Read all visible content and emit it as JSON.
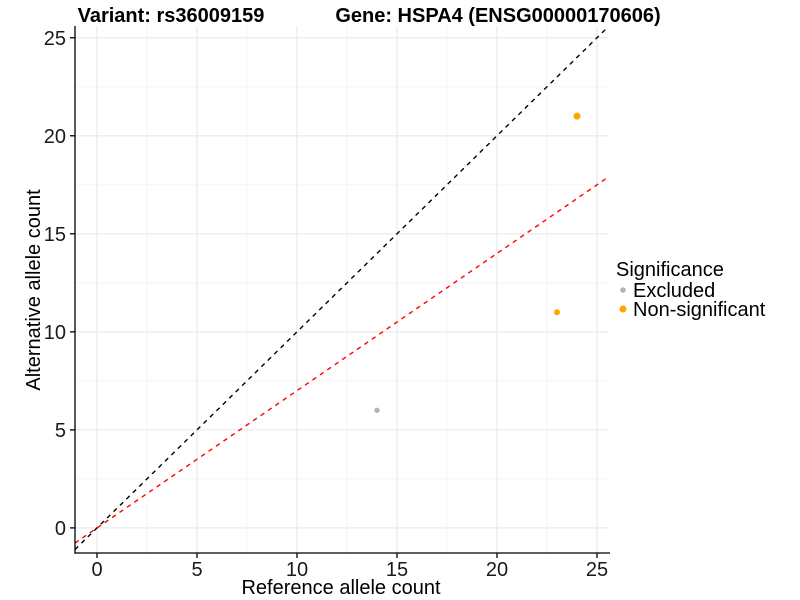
{
  "titles": {
    "variant": "Variant: rs36009159",
    "gene": "Gene: HSPA4 (ENSG00000170606)"
  },
  "chart_data": {
    "type": "scatter",
    "xlabel": "Reference allele count",
    "ylabel": "Alternative allele count",
    "xlim": [
      -1.1,
      25.55
    ],
    "ylim": [
      -1.28,
      25.6
    ],
    "x_ticks": [
      0,
      5,
      10,
      15,
      20,
      25
    ],
    "y_ticks": [
      0,
      5,
      10,
      15,
      20,
      25
    ],
    "grid": {
      "major": true,
      "minor": true,
      "major_color": "#e8e8e8",
      "minor_color": "#f3f3f3"
    },
    "series": [
      {
        "name": "Excluded",
        "color": "#b4b4b4",
        "points": [
          {
            "x": 14,
            "y": 6,
            "r": 2.7
          }
        ]
      },
      {
        "name": "Non-significant",
        "color": "#FFA500",
        "points": [
          {
            "x": 23,
            "y": 11,
            "r": 3.0
          },
          {
            "x": 24,
            "y": 21,
            "r": 3.5
          }
        ]
      }
    ],
    "ref_lines": [
      {
        "name": "identity",
        "slope": 1,
        "intercept": 0,
        "color": "#000000",
        "style": "dashed"
      },
      {
        "name": "expected-ratio",
        "slope": 0.7,
        "intercept": 0,
        "color": "#FF0000",
        "style": "dashed"
      }
    ],
    "legend": {
      "title": "Significance",
      "position": "right",
      "entries": [
        {
          "label": "Excluded",
          "color": "#b4b4b4",
          "r": 2.8
        },
        {
          "label": "Non-significant",
          "color": "#FFA500",
          "r": 3.5
        }
      ]
    }
  }
}
